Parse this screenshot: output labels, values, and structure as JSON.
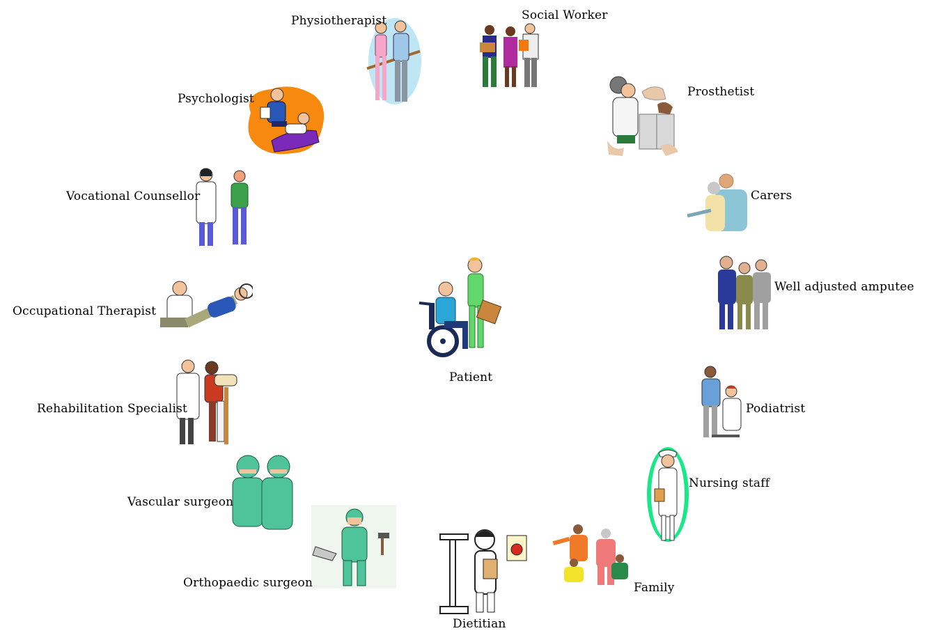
{
  "center": {
    "label": "Patient"
  },
  "roles": {
    "physiotherapist": "Physiotherapist",
    "social_worker": "Social Worker",
    "prosthetist": "Prosthetist",
    "psychologist": "Psychologist",
    "carers": "Carers",
    "vocational_counsellor": "Vocational Counsellor",
    "well_adjusted_amputee": "Well adjusted amputee",
    "occupational_therapist": "Occupational Therapist",
    "rehabilitation_specialist": "Rehabilitation Specialist",
    "podiatrist": "Podiatrist",
    "nursing_staff": "Nursing staff",
    "vascular_surgeon": "Vascular surgeon",
    "orthopaedic_surgeon": "Orthopaedic surgeon",
    "dietitian": "Dietitian",
    "family": "Family"
  },
  "colors": {
    "text": "#000000",
    "psychologist_bg": "#f7890f",
    "nursing_halo": "#19e889",
    "surgeon_gown": "#4fc49a",
    "physio_bg": "#bfe6f5"
  }
}
